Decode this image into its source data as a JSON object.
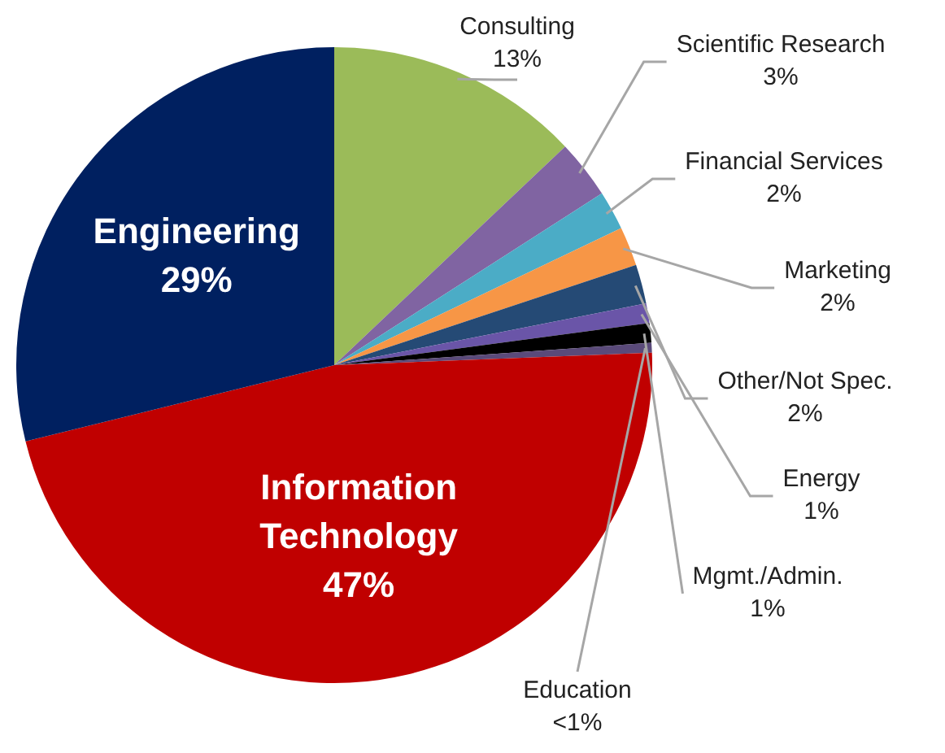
{
  "chart_data": {
    "type": "pie",
    "categories": [
      "Consulting",
      "Scientific Research",
      "Financial Services",
      "Marketing",
      "Other/Not Spec.",
      "Energy",
      "Mgmt./Admin.",
      "Education",
      "Information Technology",
      "Engineering"
    ],
    "values": [
      13,
      3,
      2,
      2,
      2,
      1,
      1,
      0.5,
      47,
      29
    ],
    "value_labels": [
      "13%",
      "3%",
      "2%",
      "2%",
      "2%",
      "1%",
      "1%",
      "<1%",
      "47%",
      "29%"
    ],
    "colors": [
      "#9bbb59",
      "#8064a2",
      "#4bacc6",
      "#f79646",
      "#254a75",
      "#6a55a8",
      "#000000",
      "#5a4a7a",
      "#c00000",
      "#002060"
    ],
    "legend": false
  }
}
